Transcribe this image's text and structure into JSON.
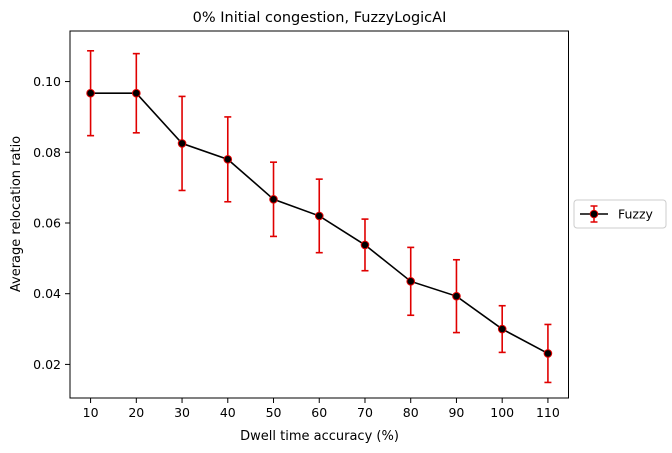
{
  "chart_data": {
    "type": "line",
    "title": "0% Initial congestion, FuzzyLogicAI",
    "xlabel": "Dwell time accuracy (%)",
    "ylabel": "Average relocation ratio",
    "categories": [
      "10",
      "20",
      "30",
      "40",
      "50",
      "60",
      "70",
      "80",
      "90",
      "100",
      "110"
    ],
    "x": [
      10,
      20,
      30,
      40,
      50,
      60,
      70,
      80,
      90,
      100,
      110
    ],
    "xlim": [
      5.5,
      114.5
    ],
    "ylim": [
      0.0105,
      0.1143
    ],
    "yticks": [
      0.02,
      0.04,
      0.06,
      0.08,
      0.1
    ],
    "ytick_labels": [
      "0.02",
      "0.04",
      "0.06",
      "0.08",
      "0.10"
    ],
    "grid": false,
    "legend_position": "center-right, outside plot",
    "series": [
      {
        "name": "Fuzzy",
        "values": [
          0.0967,
          0.0967,
          0.0825,
          0.078,
          0.0667,
          0.062,
          0.0538,
          0.0435,
          0.0393,
          0.03,
          0.0231
        ],
        "error": [
          0.012,
          0.0112,
          0.0133,
          0.012,
          0.0105,
          0.0104,
          0.0073,
          0.0096,
          0.0103,
          0.0066,
          0.0082
        ],
        "line_color": "#000000",
        "marker_face_color": "#000000",
        "marker_edge_color": "#e00000",
        "error_color": "#e00000"
      }
    ]
  }
}
